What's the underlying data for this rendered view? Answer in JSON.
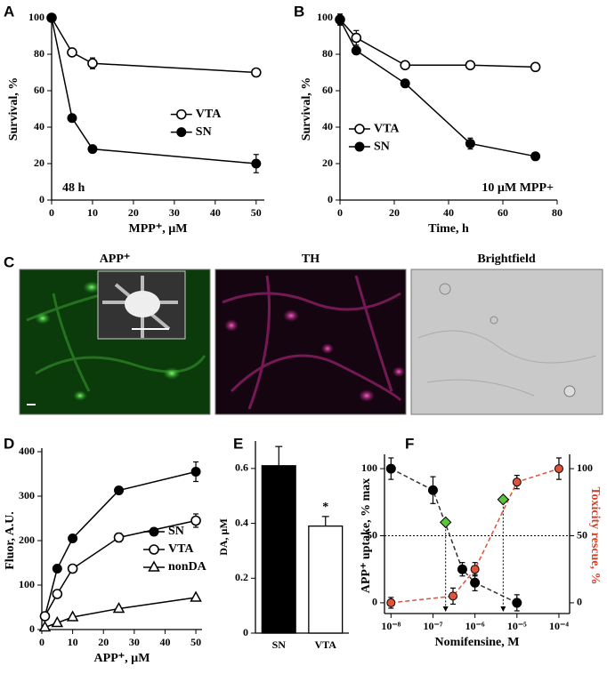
{
  "chart_data": [
    {
      "type": "line",
      "label": "A",
      "xlabel": "MPP⁺, µM",
      "ylabel": "Survival, %",
      "xlim": [
        0,
        52
      ],
      "ylim": [
        0,
        100
      ],
      "xticks": [
        0,
        10,
        20,
        30,
        40,
        50
      ],
      "yticks": [
        0,
        20,
        40,
        60,
        80,
        100
      ],
      "legend": "center right",
      "annotation": {
        "text": "48 h",
        "corner": "lower left"
      },
      "series": [
        {
          "name": "VTA",
          "color": "#000000",
          "marker": "circle-open",
          "x": [
            0,
            5,
            10,
            50
          ],
          "values": [
            100,
            81,
            75,
            70
          ],
          "errors": [
            0,
            0,
            3,
            1
          ]
        },
        {
          "name": "SN",
          "color": "#000000",
          "marker": "circle-filled",
          "x": [
            0,
            5,
            10,
            50
          ],
          "values": [
            100,
            45,
            28,
            20
          ],
          "errors": [
            0,
            0,
            0,
            5
          ]
        }
      ]
    },
    {
      "type": "line",
      "label": "B",
      "xlabel": "Time, h",
      "ylabel": "Survival, %",
      "xlim": [
        0,
        80
      ],
      "ylim": [
        0,
        100
      ],
      "xticks": [
        0,
        20,
        40,
        60,
        80
      ],
      "yticks": [
        0,
        20,
        40,
        60,
        80,
        100
      ],
      "legend": "lower left",
      "annotation": {
        "text": "10 µM MPP+",
        "corner": "lower right"
      },
      "series": [
        {
          "name": "VTA",
          "color": "#000000",
          "marker": "circle-open",
          "x": [
            0,
            6,
            24,
            48,
            72
          ],
          "values": [
            99,
            89,
            74,
            74,
            73
          ],
          "errors": [
            3,
            4,
            2,
            1,
            1
          ]
        },
        {
          "name": "SN",
          "color": "#000000",
          "marker": "circle-filled",
          "x": [
            0,
            6,
            24,
            48,
            72
          ],
          "values": [
            99,
            82,
            64,
            31,
            24
          ],
          "errors": [
            3,
            1,
            2,
            3,
            1
          ]
        }
      ]
    },
    {
      "type": "line",
      "label": "D",
      "xlabel": "APP⁺, µM",
      "ylabel": "Fluor, A.U.",
      "xlim": [
        0,
        52
      ],
      "ylim": [
        0,
        400
      ],
      "xticks": [
        0,
        10,
        20,
        30,
        40,
        50
      ],
      "yticks": [
        0,
        100,
        200,
        300,
        400
      ],
      "legend": "lower right",
      "series": [
        {
          "name": "SN",
          "color": "#000000",
          "marker": "circle-filled",
          "x": [
            1,
            5,
            10,
            25,
            50
          ],
          "values": [
            30,
            137,
            205,
            313,
            355
          ],
          "errors": [
            0,
            0,
            0,
            8,
            22
          ]
        },
        {
          "name": "VTA",
          "color": "#000000",
          "marker": "circle-open",
          "x": [
            1,
            5,
            10,
            25,
            50
          ],
          "values": [
            30,
            80,
            137,
            207,
            245
          ],
          "errors": [
            0,
            0,
            0,
            10,
            15
          ]
        },
        {
          "name": "nonDA",
          "color": "#000000",
          "marker": "triangle-open",
          "x": [
            1,
            5,
            10,
            25,
            50
          ],
          "values": [
            5,
            15,
            28,
            47,
            72
          ],
          "errors": [
            0,
            0,
            0,
            0,
            0
          ]
        }
      ]
    },
    {
      "type": "bar",
      "label": "E",
      "ylabel": "DA, µM",
      "ylim": [
        0,
        0.7
      ],
      "yticks": [
        0,
        0.2,
        0.4,
        0.6
      ],
      "categories": [
        "SN",
        "VTA"
      ],
      "values": [
        0.61,
        0.39
      ],
      "errors": [
        0.07,
        0.035
      ],
      "colors": [
        "#000000",
        "#ffffff"
      ],
      "annotations": [
        {
          "text": "*",
          "category": "VTA"
        }
      ]
    },
    {
      "type": "line",
      "label": "F",
      "xlabel": "Nomifensine, M",
      "ylabel": "APP⁺ uptake, % max",
      "y2label": "Toxicity rescue, %",
      "y2color": "#d9412b",
      "xscale": "log",
      "xlim": [
        7e-09,
        0.00018
      ],
      "ylim": [
        -8,
        108
      ],
      "y2lim": [
        -8,
        108
      ],
      "xticks": [
        {
          "value": 1e-08,
          "label": "10⁻⁸"
        },
        {
          "value": 1e-07,
          "label": "10⁻⁷"
        },
        {
          "value": 1e-06,
          "label": "10⁻⁶"
        },
        {
          "value": 1e-05,
          "label": "10⁻⁵"
        },
        {
          "value": 0.0001,
          "label": "10⁻⁴"
        }
      ],
      "yticks": [
        0,
        50,
        100
      ],
      "y2ticks": [
        0,
        50,
        100
      ],
      "reference_line": 50,
      "series": [
        {
          "color": "#000000",
          "marker": "circle-filled",
          "dash": true,
          "x": [
            1e-08,
            1e-07,
            5e-07,
            1e-06,
            1e-05
          ],
          "values": [
            100,
            84,
            25,
            15,
            0
          ],
          "errors": [
            8,
            10,
            5,
            6,
            6
          ]
        },
        {
          "color": "#e0533a",
          "marker": "circle-red",
          "dash": true,
          "axis": "y2",
          "x": [
            1e-08,
            3e-07,
            1e-06,
            1e-05,
            0.0001
          ],
          "values": [
            0,
            5,
            25,
            90,
            100
          ],
          "errors": [
            4,
            6,
            5,
            5,
            8
          ]
        },
        {
          "color": "#5cc43a",
          "marker": "diamond",
          "droplines": true,
          "x": [
            2e-07
          ],
          "values": [
            60
          ]
        },
        {
          "color": "#5cc43a",
          "marker": "diamond",
          "droplines": true,
          "axis": "y2",
          "x": [
            4.7e-06
          ],
          "values": [
            77
          ]
        }
      ]
    }
  ],
  "panel_c": {
    "label": "C",
    "images": [
      {
        "title": "APP⁺"
      },
      {
        "title": "TH"
      },
      {
        "title": "Brightfield"
      }
    ]
  }
}
